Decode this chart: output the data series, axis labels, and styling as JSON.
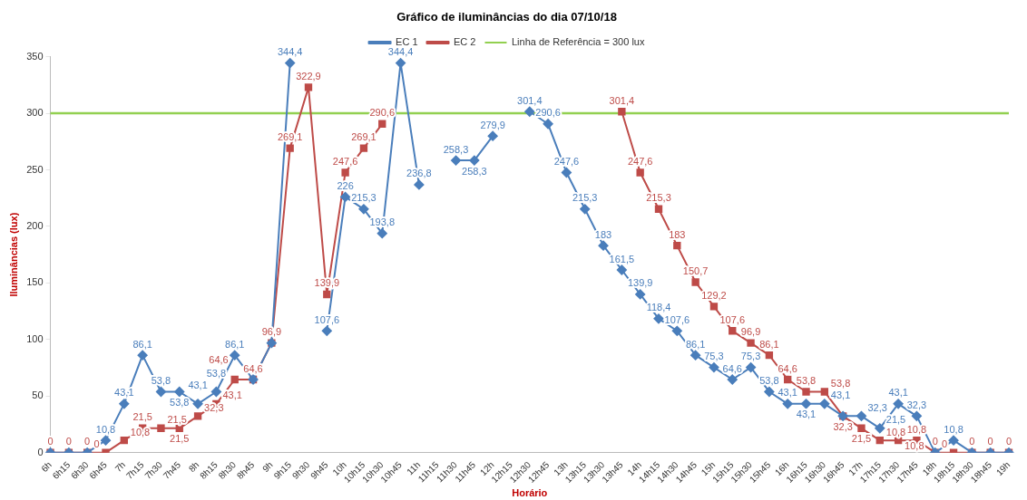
{
  "chart_data": {
    "type": "line",
    "title": "Gráfico de iluminâncias do dia 07/10/18",
    "xlabel": "Horário",
    "ylabel": "Iluminâncias (lux)",
    "categories": [
      "6h",
      "6h15",
      "6h30",
      "6h45",
      "7h",
      "7h15",
      "7h30",
      "7h45",
      "8h",
      "8h15",
      "8h30",
      "8h45",
      "9h",
      "9h15",
      "9h30",
      "9h45",
      "10h",
      "10h15",
      "10h30",
      "10h45",
      "11h",
      "11h15",
      "11h30",
      "11h45",
      "12h",
      "12h15",
      "12h30",
      "12h45",
      "13h",
      "13h15",
      "13h30",
      "13h45",
      "14h",
      "14h15",
      "14h30",
      "14h45",
      "15h",
      "15h15",
      "15h30",
      "15h45",
      "16h",
      "16h15",
      "16h30",
      "16h45",
      "17h",
      "17h15",
      "17h30",
      "17h45",
      "18h",
      "18h15",
      "18h30",
      "18h45",
      "19h"
    ],
    "series": [
      {
        "name": "EC 1",
        "color": "#4a7ebb",
        "marker": "diamond",
        "values": [
          0,
          0,
          0,
          10.8,
          43.1,
          86.1,
          53.8,
          53.8,
          43.1,
          53.8,
          86.1,
          64.6,
          96.9,
          344.4,
          null,
          107.6,
          226,
          215.3,
          193.8,
          344.4,
          236.8,
          null,
          258.3,
          258.3,
          279.9,
          null,
          301.4,
          290.6,
          247.6,
          215.3,
          183,
          161.5,
          139.9,
          118.4,
          107.6,
          86.1,
          75.3,
          64.6,
          75.3,
          53.8,
          43.1,
          43.1,
          43.1,
          32.3,
          32.3,
          21.5,
          43.1,
          32.3,
          0,
          10.8,
          0,
          0,
          0
        ],
        "value_labels": [
          null,
          null,
          null,
          "10,8",
          "43,1",
          "86,1",
          "53,8",
          "53,8",
          "43,1",
          "53,8",
          "86,1",
          null,
          null,
          "344,4",
          null,
          "107,6",
          "226",
          "215,3",
          "193,8",
          "344,4",
          "236,8",
          null,
          "258,3",
          "258,3",
          "279,9",
          null,
          "301,4",
          "290,6",
          "247,6",
          "215,3",
          "183",
          "161,5",
          "139,9",
          "118,4",
          "107,6",
          "86,1",
          "75,3",
          "64,6",
          "75,3",
          "53,8",
          "43,1",
          "43,1",
          "43,1",
          null,
          "32,3",
          "21,5",
          "43,1",
          "32,3",
          null,
          "10,8",
          null,
          null,
          null
        ]
      },
      {
        "name": "EC 2",
        "color": "#be4b48",
        "marker": "square",
        "values": [
          0,
          0,
          0,
          0,
          10.8,
          21.5,
          21.5,
          21.5,
          32.3,
          43.1,
          64.6,
          64.6,
          96.9,
          269.1,
          322.9,
          139.9,
          247.6,
          269.1,
          290.6,
          null,
          null,
          null,
          null,
          null,
          null,
          null,
          null,
          null,
          null,
          null,
          null,
          301.4,
          247.6,
          215.3,
          183,
          150.7,
          129.2,
          107.6,
          96.9,
          86.1,
          64.6,
          53.8,
          53.8,
          32.3,
          21.5,
          10.8,
          10.8,
          10.8,
          0,
          0,
          0,
          0,
          0
        ],
        "value_labels": [
          "0",
          "0",
          "0",
          "0",
          "10,8",
          "21,5",
          "21,5",
          "21,5",
          "32,3",
          "43,1",
          "64,6",
          "64,6",
          "96,9",
          "269,1",
          "322,9",
          "139,9",
          "247,6",
          "269,1",
          "290,6",
          null,
          null,
          null,
          null,
          null,
          null,
          null,
          null,
          null,
          null,
          null,
          null,
          "301,4",
          "247,6",
          "215,3",
          "183",
          "150,7",
          "129,2",
          "107,6",
          "96,9",
          "86,1",
          "64,6",
          "53,8",
          "53,8",
          "32,3",
          "21,5",
          "10,8",
          "10,8",
          "10,8",
          "0",
          "0",
          "0",
          "0",
          "0"
        ]
      }
    ],
    "ref_lines": [
      {
        "axis": "y",
        "value": 300,
        "label": "Linha de Referência = 300 lux",
        "color": "#92d050"
      }
    ],
    "ylim": [
      0,
      350
    ],
    "yticks": [
      0,
      50,
      100,
      150,
      200,
      250,
      300,
      350
    ],
    "grid": false,
    "legend": "top",
    "line_style": "solid"
  }
}
